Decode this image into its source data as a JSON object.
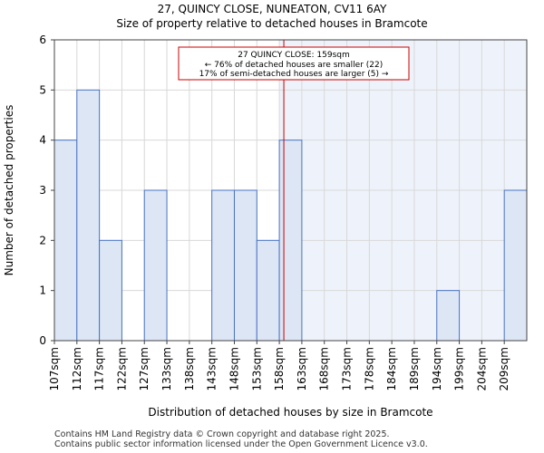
{
  "chart_data": {
    "type": "bar",
    "title": "27, QUINCY CLOSE, NUNEATON, CV11 6AY",
    "subtitle": "Size of property relative to detached houses in Bramcote",
    "xlabel": "Distribution of detached houses by size in Bramcote",
    "ylabel": "Number of detached properties",
    "categories": [
      "107sqm",
      "112sqm",
      "117sqm",
      "122sqm",
      "127sqm",
      "133sqm",
      "138sqm",
      "143sqm",
      "148sqm",
      "153sqm",
      "158sqm",
      "163sqm",
      "168sqm",
      "173sqm",
      "178sqm",
      "184sqm",
      "189sqm",
      "194sqm",
      "199sqm",
      "204sqm",
      "209sqm"
    ],
    "values": [
      4,
      5,
      2,
      0,
      3,
      0,
      0,
      3,
      3,
      2,
      4,
      0,
      0,
      0,
      0,
      0,
      0,
      1,
      0,
      0,
      3
    ],
    "ylim": [
      0,
      6
    ],
    "yticks": [
      0,
      1,
      2,
      3,
      4,
      5,
      6
    ],
    "marker_value": 159,
    "marker_bin_position": 10.2,
    "highlight_from_bin": 10,
    "annotation": {
      "line1": "27 QUINCY CLOSE: 159sqm",
      "line2": "← 76% of detached houses are smaller (22)",
      "line3": "17% of semi-detached houses are larger (5) →"
    },
    "colors": {
      "bar_fill": "#dce6f4",
      "bar_stroke": "#4a74c4",
      "highlight_bg": "#eef3fb",
      "marker": "#cc0000",
      "grid": "#d8d8d8"
    }
  },
  "footer": {
    "line1": "Contains HM Land Registry data © Crown copyright and database right 2025.",
    "line2": "Contains public sector information licensed under the Open Government Licence v3.0."
  }
}
